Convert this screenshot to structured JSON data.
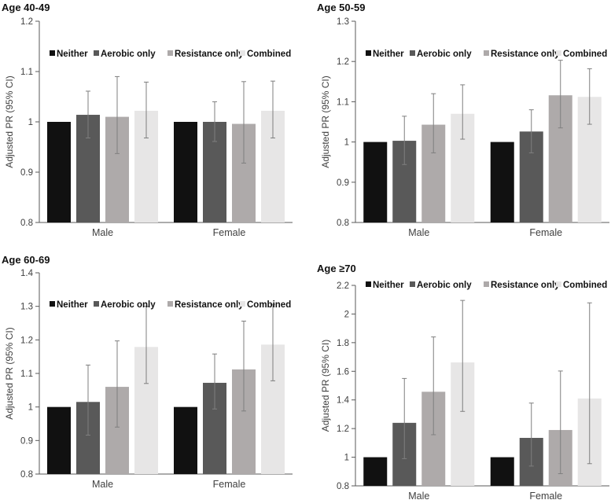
{
  "chart_data": [
    {
      "type": "bar",
      "title": "Age 40-49",
      "ylabel": "Adjusted PR (95% CI)",
      "xlabel": "",
      "ylim": [
        0.8,
        1.2
      ],
      "yticks": [
        "0.8",
        "0.9",
        "1",
        "1.1",
        "1.2"
      ],
      "ytick_values": [
        0.8,
        0.9,
        1.0,
        1.1,
        1.2
      ],
      "categories": [
        "Male",
        "Female"
      ],
      "legend_position": "top-inside",
      "series": [
        {
          "name": "Neither",
          "color": "#111111",
          "values": [
            1.0,
            1.0
          ],
          "ci_low": [
            null,
            null
          ],
          "ci_high": [
            null,
            null
          ]
        },
        {
          "name": "Aerobic only",
          "color": "#595959",
          "values": [
            1.014,
            1.0
          ],
          "ci_low": [
            0.968,
            0.961
          ],
          "ci_high": [
            1.061,
            1.04
          ]
        },
        {
          "name": "Resistance only",
          "color": "#aeaaaa",
          "values": [
            1.01,
            0.996
          ],
          "ci_low": [
            0.937,
            0.918
          ],
          "ci_high": [
            1.09,
            1.08
          ]
        },
        {
          "name": "Combined",
          "color": "#e7e6e6",
          "values": [
            1.022,
            1.022
          ],
          "ci_low": [
            0.968,
            0.968
          ],
          "ci_high": [
            1.079,
            1.081
          ]
        }
      ]
    },
    {
      "type": "bar",
      "title": "Age 50-59",
      "ylabel": "Adjusted PR (95% CI)",
      "xlabel": "",
      "ylim": [
        0.8,
        1.3
      ],
      "yticks": [
        "0.8",
        "0.9",
        "1",
        "1.1",
        "1.2",
        "1.3"
      ],
      "ytick_values": [
        0.8,
        0.9,
        1.0,
        1.1,
        1.2,
        1.3
      ],
      "categories": [
        "Male",
        "Female"
      ],
      "legend_position": "top-inside",
      "series": [
        {
          "name": "Neither",
          "color": "#111111",
          "values": [
            1.0,
            1.0
          ],
          "ci_low": [
            null,
            null
          ],
          "ci_high": [
            null,
            null
          ]
        },
        {
          "name": "Aerobic only",
          "color": "#595959",
          "values": [
            1.003,
            1.026
          ],
          "ci_low": [
            0.944,
            0.973
          ],
          "ci_high": [
            1.064,
            1.08
          ]
        },
        {
          "name": "Resistance only",
          "color": "#aeaaaa",
          "values": [
            1.043,
            1.116
          ],
          "ci_low": [
            0.973,
            1.035
          ],
          "ci_high": [
            1.12,
            1.203
          ]
        },
        {
          "name": "Combined",
          "color": "#e7e6e6",
          "values": [
            1.07,
            1.112
          ],
          "ci_low": [
            1.007,
            1.044
          ],
          "ci_high": [
            1.142,
            1.182
          ]
        }
      ]
    },
    {
      "type": "bar",
      "title": "Age 60-69",
      "ylabel": "Adjusted PR (95% CI)",
      "xlabel": "",
      "ylim": [
        0.8,
        1.4
      ],
      "yticks": [
        "0.8",
        "0.9",
        "1",
        "1.1",
        "1.2",
        "1.3",
        "1.4"
      ],
      "ytick_values": [
        0.8,
        0.9,
        1.0,
        1.1,
        1.2,
        1.3,
        1.4
      ],
      "categories": [
        "Male",
        "Female"
      ],
      "legend_position": "top-inside",
      "series": [
        {
          "name": "Neither",
          "color": "#111111",
          "values": [
            1.0,
            1.0
          ],
          "ci_low": [
            null,
            null
          ],
          "ci_high": [
            null,
            null
          ]
        },
        {
          "name": "Aerobic only",
          "color": "#595959",
          "values": [
            1.015,
            1.072
          ],
          "ci_low": [
            0.916,
            0.994
          ],
          "ci_high": [
            1.125,
            1.158
          ]
        },
        {
          "name": "Resistance only",
          "color": "#aeaaaa",
          "values": [
            1.06,
            1.112
          ],
          "ci_low": [
            0.94,
            0.988
          ],
          "ci_high": [
            1.197,
            1.256
          ]
        },
        {
          "name": "Combined",
          "color": "#e7e6e6",
          "values": [
            1.179,
            1.186
          ],
          "ci_low": [
            1.07,
            1.078
          ],
          "ci_high": [
            1.3,
            1.306
          ]
        }
      ]
    },
    {
      "type": "bar",
      "title": "Age ≥70",
      "ylabel": "Adjusted PR (95% CI)",
      "xlabel": "",
      "ylim": [
        0.8,
        2.2
      ],
      "yticks": [
        "0.8",
        "1",
        "1.2",
        "1.4",
        "1.6",
        "1.8",
        "2",
        "2.2"
      ],
      "ytick_values": [
        0.8,
        1.0,
        1.2,
        1.4,
        1.6,
        1.8,
        2.0,
        2.2
      ],
      "categories": [
        "Male",
        "Female"
      ],
      "legend_position": "top",
      "series": [
        {
          "name": "Neither",
          "color": "#111111",
          "values": [
            1.0,
            1.0
          ],
          "ci_low": [
            null,
            null
          ],
          "ci_high": [
            null,
            null
          ]
        },
        {
          "name": "Aerobic only",
          "color": "#595959",
          "values": [
            1.24,
            1.135
          ],
          "ci_low": [
            0.99,
            0.938
          ],
          "ci_high": [
            1.55,
            1.378
          ]
        },
        {
          "name": "Resistance only",
          "color": "#aeaaaa",
          "values": [
            1.457,
            1.19
          ],
          "ci_low": [
            1.157,
            0.885
          ],
          "ci_high": [
            1.84,
            1.602
          ]
        },
        {
          "name": "Combined",
          "color": "#e7e6e6",
          "values": [
            1.662,
            1.41
          ],
          "ci_low": [
            1.32,
            0.955
          ],
          "ci_high": [
            2.095,
            2.078
          ]
        }
      ]
    }
  ]
}
